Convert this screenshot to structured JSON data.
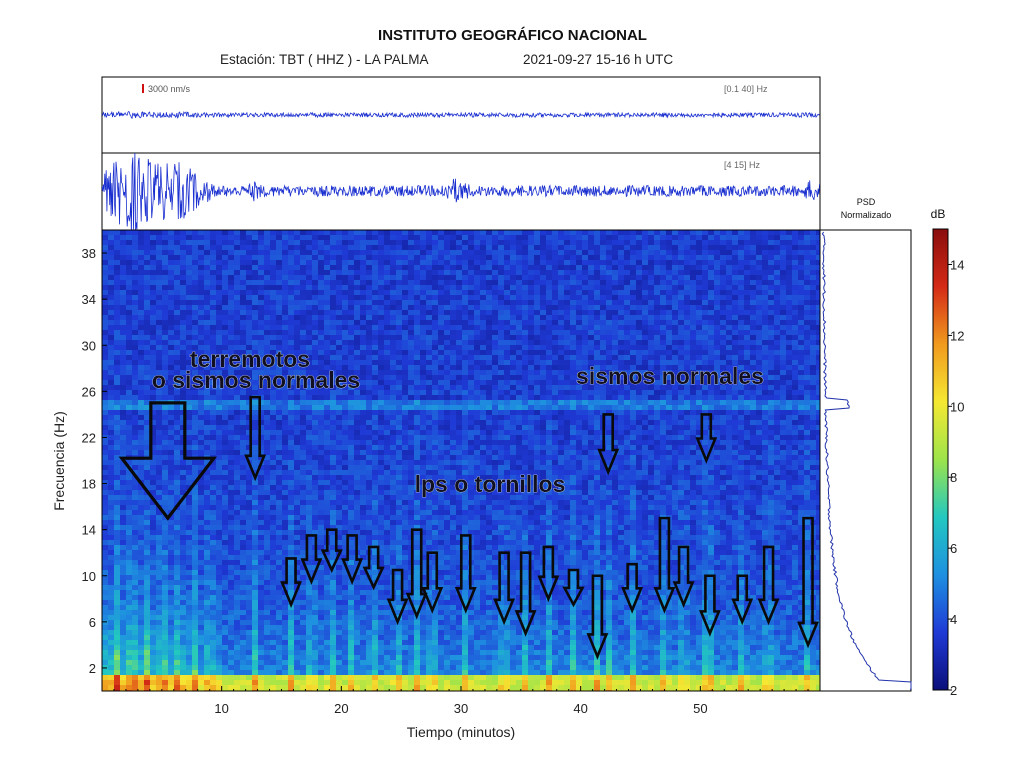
{
  "header": {
    "title": "INSTITUTO GEOGRÁFICO NACIONAL",
    "station": "Estación:  TBT ( HHZ ) - LA PALMA",
    "datetime": "2021-09-27  15-16 h UTC"
  },
  "trace_top": {
    "scale_label": "3000 nm/s",
    "band_label": "[0.1 40] Hz"
  },
  "trace_bottom": {
    "band_label": "[4 15] Hz"
  },
  "psd": {
    "title_line1": "PSD",
    "title_line2": "Normalizado"
  },
  "colorbar": {
    "unit": "dB",
    "ticks": [
      "2",
      "4",
      "6",
      "8",
      "10",
      "12",
      "14"
    ],
    "colors": [
      "#0b0f7a",
      "#1f3ad6",
      "#1e90e0",
      "#22c8c0",
      "#9de44a",
      "#f5e832",
      "#f09a1e",
      "#d42a16",
      "#8a0d0d"
    ]
  },
  "annotations": {
    "earthquakes_line1": "terremotos",
    "earthquakes_line2": "o sismos normales",
    "normal": "sismos normales",
    "lps": "lps  o tornillos"
  },
  "chart_data": {
    "type": "heatmap",
    "title": "",
    "xlabel": "Tiempo (minutos)",
    "ylabel": "Frecuencia (Hz)",
    "xlim": [
      0,
      60
    ],
    "ylim": [
      0,
      40
    ],
    "x_ticks": [
      "10",
      "20",
      "30",
      "40",
      "50"
    ],
    "y_ticks": [
      "2",
      "6",
      "10",
      "14",
      "18",
      "22",
      "26",
      "30",
      "34",
      "38"
    ],
    "color_range_db": [
      2,
      15
    ],
    "earthquake_arrow": {
      "x": 5.5,
      "y_top": 25,
      "y_bottom": 15
    },
    "normal_event_arrows": [
      {
        "x": 12.8,
        "y_top": 25.5,
        "y_bottom": 18.5
      },
      {
        "x": 42.3,
        "y_top": 24,
        "y_bottom": 19
      },
      {
        "x": 50.5,
        "y_top": 24,
        "y_bottom": 20
      }
    ],
    "lp_arrows": [
      {
        "x": 15.8,
        "y_top": 11.5,
        "y_bottom": 7.5
      },
      {
        "x": 17.5,
        "y_top": 13.5,
        "y_bottom": 9.5
      },
      {
        "x": 19.2,
        "y_top": 14,
        "y_bottom": 10.5
      },
      {
        "x": 20.9,
        "y_top": 13.5,
        "y_bottom": 9.5
      },
      {
        "x": 22.7,
        "y_top": 12.5,
        "y_bottom": 9
      },
      {
        "x": 24.7,
        "y_top": 10.5,
        "y_bottom": 6
      },
      {
        "x": 26.3,
        "y_top": 14,
        "y_bottom": 6.5
      },
      {
        "x": 27.6,
        "y_top": 12,
        "y_bottom": 7
      },
      {
        "x": 30.4,
        "y_top": 13.5,
        "y_bottom": 7
      },
      {
        "x": 33.6,
        "y_top": 12,
        "y_bottom": 6
      },
      {
        "x": 35.4,
        "y_top": 12,
        "y_bottom": 5
      },
      {
        "x": 37.3,
        "y_top": 12.5,
        "y_bottom": 8
      },
      {
        "x": 39.4,
        "y_top": 10.5,
        "y_bottom": 7.5
      },
      {
        "x": 41.4,
        "y_top": 10,
        "y_bottom": 3
      },
      {
        "x": 44.3,
        "y_top": 11,
        "y_bottom": 7
      },
      {
        "x": 47.0,
        "y_top": 15,
        "y_bottom": 7
      },
      {
        "x": 48.6,
        "y_top": 12.5,
        "y_bottom": 7.5
      },
      {
        "x": 50.8,
        "y_top": 10,
        "y_bottom": 5
      },
      {
        "x": 53.5,
        "y_top": 10,
        "y_bottom": 6
      },
      {
        "x": 55.7,
        "y_top": 12.5,
        "y_bottom": 6
      },
      {
        "x": 59.0,
        "y_top": 15,
        "y_bottom": 4
      }
    ],
    "vertical_stripes_minutes": [
      1.2,
      2.5,
      3.8,
      5.1,
      6.4,
      7.7,
      9.0,
      12.8,
      15.8,
      17.5,
      19.2,
      20.9,
      22.7,
      24.7,
      26.3,
      27.6,
      30.4,
      33.6,
      35.4,
      37.3,
      39.4,
      41.4,
      42.3,
      44.3,
      47.0,
      48.6,
      50.5,
      50.8,
      53.5,
      55.7,
      59.0
    ]
  }
}
